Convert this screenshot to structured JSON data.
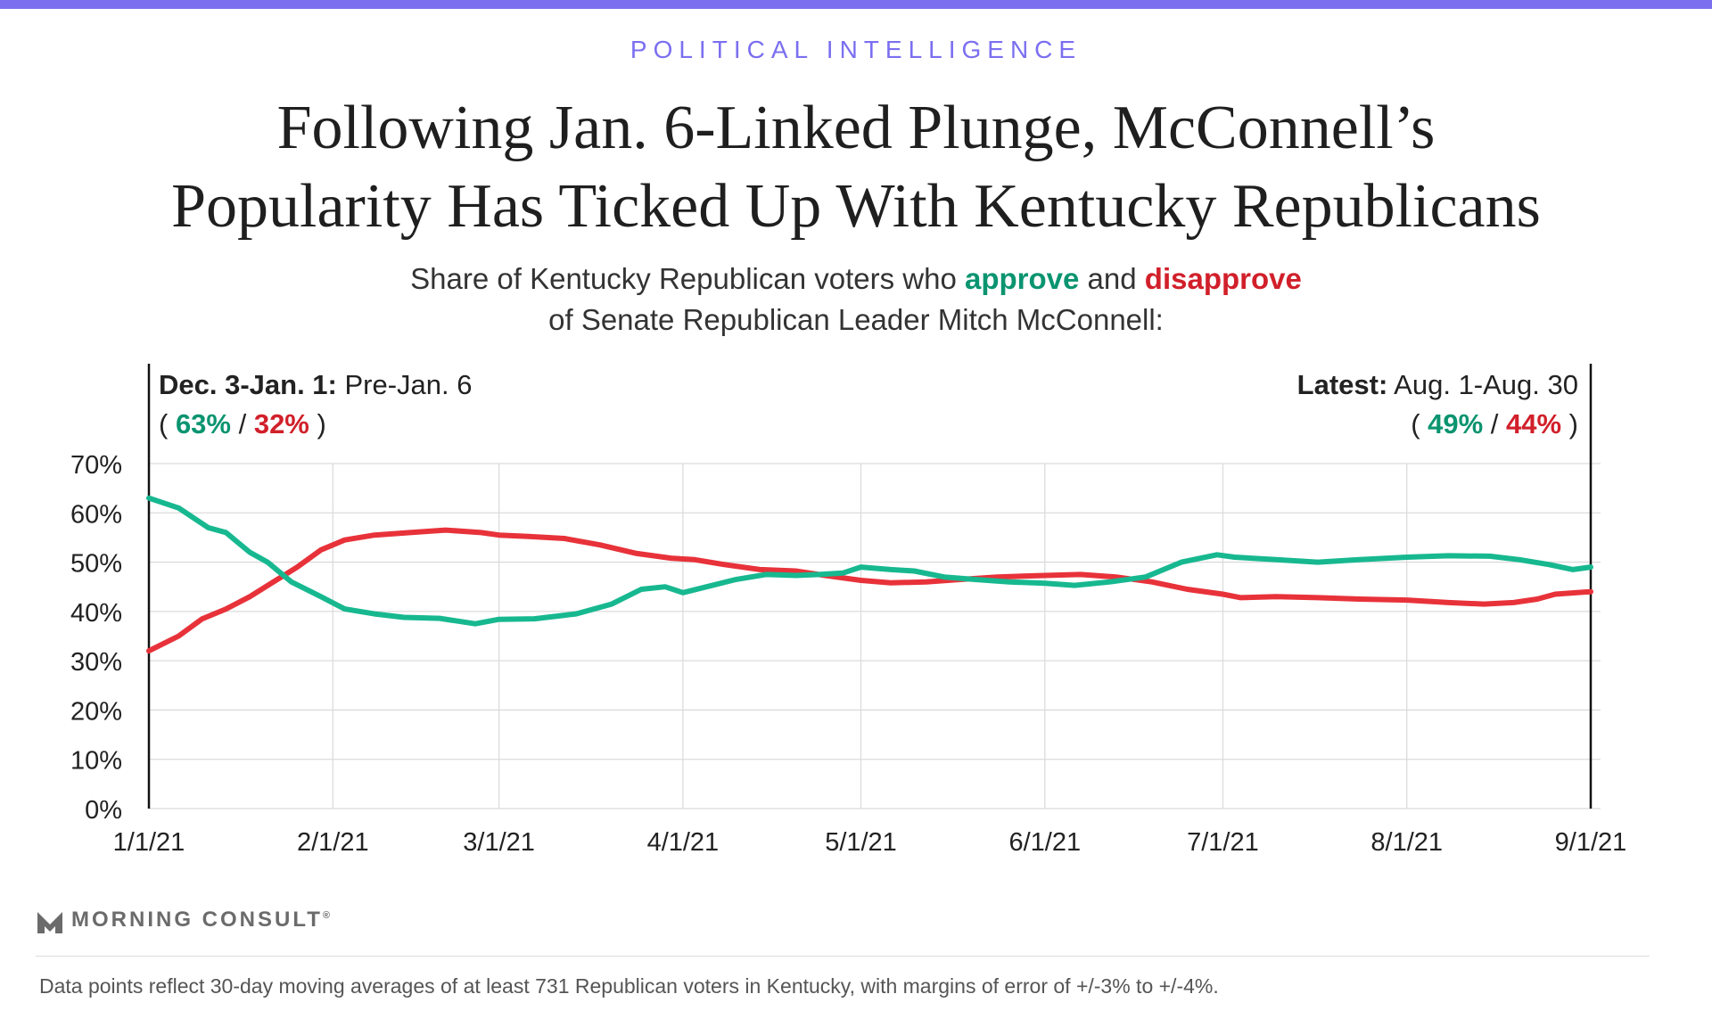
{
  "header": {
    "kicker": "POLITICAL INTELLIGENCE",
    "title_line1": "Following Jan. 6-Linked Plunge, McConnell’s",
    "title_line2": "Popularity Has Ticked Up With Kentucky Republicans",
    "subtitle_pre": "Share of Kentucky Republican voters who ",
    "subtitle_approve": "approve",
    "subtitle_and": " and ",
    "subtitle_disapprove": "disapprove",
    "subtitle_line2": "of Senate Republican Leader Mitch McConnell:"
  },
  "annotations": {
    "left": {
      "bold": "Dec. 3-Jan. 1:",
      "text": " Pre-Jan. 6",
      "open": "( ",
      "approve": "63%",
      "sep": " / ",
      "disapprove": "32%",
      "close": " )"
    },
    "right": {
      "bold": "Latest:",
      "text": " Aug. 1-Aug. 30",
      "open": "( ",
      "approve": "49%",
      "sep": " / ",
      "disapprove": "44%",
      "close": " )"
    }
  },
  "colors": {
    "approve": "#17b890",
    "disapprove": "#e8323a",
    "approve_text": "#0a9470",
    "disapprove_text": "#d1202a",
    "accent": "#7b6ff0",
    "grid": "#dcdcdc"
  },
  "footer": {
    "brand": "MORNING CONSULT",
    "brand_mark": "®",
    "footnote": "Data points reflect 30-day moving averages of at least 731 Republican voters in Kentucky, with margins of error of +/-3% to +/-4%."
  },
  "chart_data": {
    "type": "line",
    "ylim": [
      0,
      70
    ],
    "yticks": [
      0,
      10,
      20,
      30,
      40,
      50,
      60,
      70
    ],
    "ytick_labels": [
      "0%",
      "10%",
      "20%",
      "30%",
      "40%",
      "50%",
      "60%",
      "70%"
    ],
    "xlim": [
      "2021-01-01",
      "2021-09-01"
    ],
    "xticks": [
      "2021-01-01",
      "2021-02-01",
      "2021-03-01",
      "2021-04-01",
      "2021-05-01",
      "2021-06-01",
      "2021-07-01",
      "2021-08-01",
      "2021-09-01"
    ],
    "xtick_labels": [
      "1/1/21",
      "2/1/21",
      "3/1/21",
      "4/1/21",
      "5/1/21",
      "6/1/21",
      "7/1/21",
      "8/1/21",
      "9/1/21"
    ],
    "grid": true,
    "legend": "none",
    "series": [
      {
        "label": "approve",
        "points": [
          [
            "2021-01-01",
            63
          ],
          [
            "2021-01-06",
            61
          ],
          [
            "2021-01-11",
            57
          ],
          [
            "2021-01-14",
            56
          ],
          [
            "2021-01-18",
            52
          ],
          [
            "2021-01-21",
            50
          ],
          [
            "2021-01-25",
            46
          ],
          [
            "2021-01-30",
            43
          ],
          [
            "2021-02-03",
            40.5
          ],
          [
            "2021-02-08",
            39.5
          ],
          [
            "2021-02-13",
            38.8
          ],
          [
            "2021-02-19",
            38.6
          ],
          [
            "2021-02-25",
            37.5
          ],
          [
            "2021-03-01",
            38.4
          ],
          [
            "2021-03-07",
            38.5
          ],
          [
            "2021-03-14",
            39.5
          ],
          [
            "2021-03-20",
            41.5
          ],
          [
            "2021-03-25",
            44.5
          ],
          [
            "2021-03-29",
            45
          ],
          [
            "2021-04-01",
            43.8
          ],
          [
            "2021-04-05",
            45
          ],
          [
            "2021-04-10",
            46.5
          ],
          [
            "2021-04-15",
            47.5
          ],
          [
            "2021-04-20",
            47.3
          ],
          [
            "2021-04-24",
            47.5
          ],
          [
            "2021-04-28",
            47.8
          ],
          [
            "2021-05-01",
            49
          ],
          [
            "2021-05-06",
            48.5
          ],
          [
            "2021-05-10",
            48.2
          ],
          [
            "2021-05-15",
            47
          ],
          [
            "2021-05-20",
            46.5
          ],
          [
            "2021-05-26",
            46
          ],
          [
            "2021-06-01",
            45.7
          ],
          [
            "2021-06-06",
            45.3
          ],
          [
            "2021-06-12",
            46
          ],
          [
            "2021-06-18",
            47
          ],
          [
            "2021-06-24",
            50
          ],
          [
            "2021-06-30",
            51.5
          ],
          [
            "2021-07-03",
            51
          ],
          [
            "2021-07-10",
            50.5
          ],
          [
            "2021-07-17",
            50
          ],
          [
            "2021-07-24",
            50.5
          ],
          [
            "2021-08-01",
            51
          ],
          [
            "2021-08-08",
            51.3
          ],
          [
            "2021-08-15",
            51.2
          ],
          [
            "2021-08-20",
            50.5
          ],
          [
            "2021-08-25",
            49.5
          ],
          [
            "2021-08-29",
            48.5
          ],
          [
            "2021-09-01",
            49
          ]
        ]
      },
      {
        "label": "disapprove",
        "points": [
          [
            "2021-01-01",
            32
          ],
          [
            "2021-01-06",
            35
          ],
          [
            "2021-01-10",
            38.5
          ],
          [
            "2021-01-14",
            40.5
          ],
          [
            "2021-01-18",
            43
          ],
          [
            "2021-01-22",
            46
          ],
          [
            "2021-01-26",
            49
          ],
          [
            "2021-01-30",
            52.5
          ],
          [
            "2021-02-03",
            54.5
          ],
          [
            "2021-02-08",
            55.5
          ],
          [
            "2021-02-14",
            56
          ],
          [
            "2021-02-20",
            56.5
          ],
          [
            "2021-02-26",
            56
          ],
          [
            "2021-03-01",
            55.5
          ],
          [
            "2021-03-06",
            55.2
          ],
          [
            "2021-03-12",
            54.8
          ],
          [
            "2021-03-18",
            53.5
          ],
          [
            "2021-03-24",
            51.8
          ],
          [
            "2021-03-30",
            50.8
          ],
          [
            "2021-04-03",
            50.5
          ],
          [
            "2021-04-08",
            49.5
          ],
          [
            "2021-04-14",
            48.5
          ],
          [
            "2021-04-20",
            48.2
          ],
          [
            "2021-04-25",
            47.3
          ],
          [
            "2021-05-01",
            46.3
          ],
          [
            "2021-05-06",
            45.8
          ],
          [
            "2021-05-12",
            46
          ],
          [
            "2021-05-18",
            46.5
          ],
          [
            "2021-05-24",
            47
          ],
          [
            "2021-06-01",
            47.3
          ],
          [
            "2021-06-07",
            47.5
          ],
          [
            "2021-06-13",
            47
          ],
          [
            "2021-06-19",
            46
          ],
          [
            "2021-06-25",
            44.5
          ],
          [
            "2021-07-01",
            43.5
          ],
          [
            "2021-07-04",
            42.8
          ],
          [
            "2021-07-10",
            43
          ],
          [
            "2021-07-17",
            42.8
          ],
          [
            "2021-07-24",
            42.5
          ],
          [
            "2021-08-01",
            42.3
          ],
          [
            "2021-08-08",
            41.8
          ],
          [
            "2021-08-14",
            41.5
          ],
          [
            "2021-08-19",
            41.8
          ],
          [
            "2021-08-23",
            42.5
          ],
          [
            "2021-08-26",
            43.5
          ],
          [
            "2021-09-01",
            44
          ]
        ]
      }
    ]
  }
}
